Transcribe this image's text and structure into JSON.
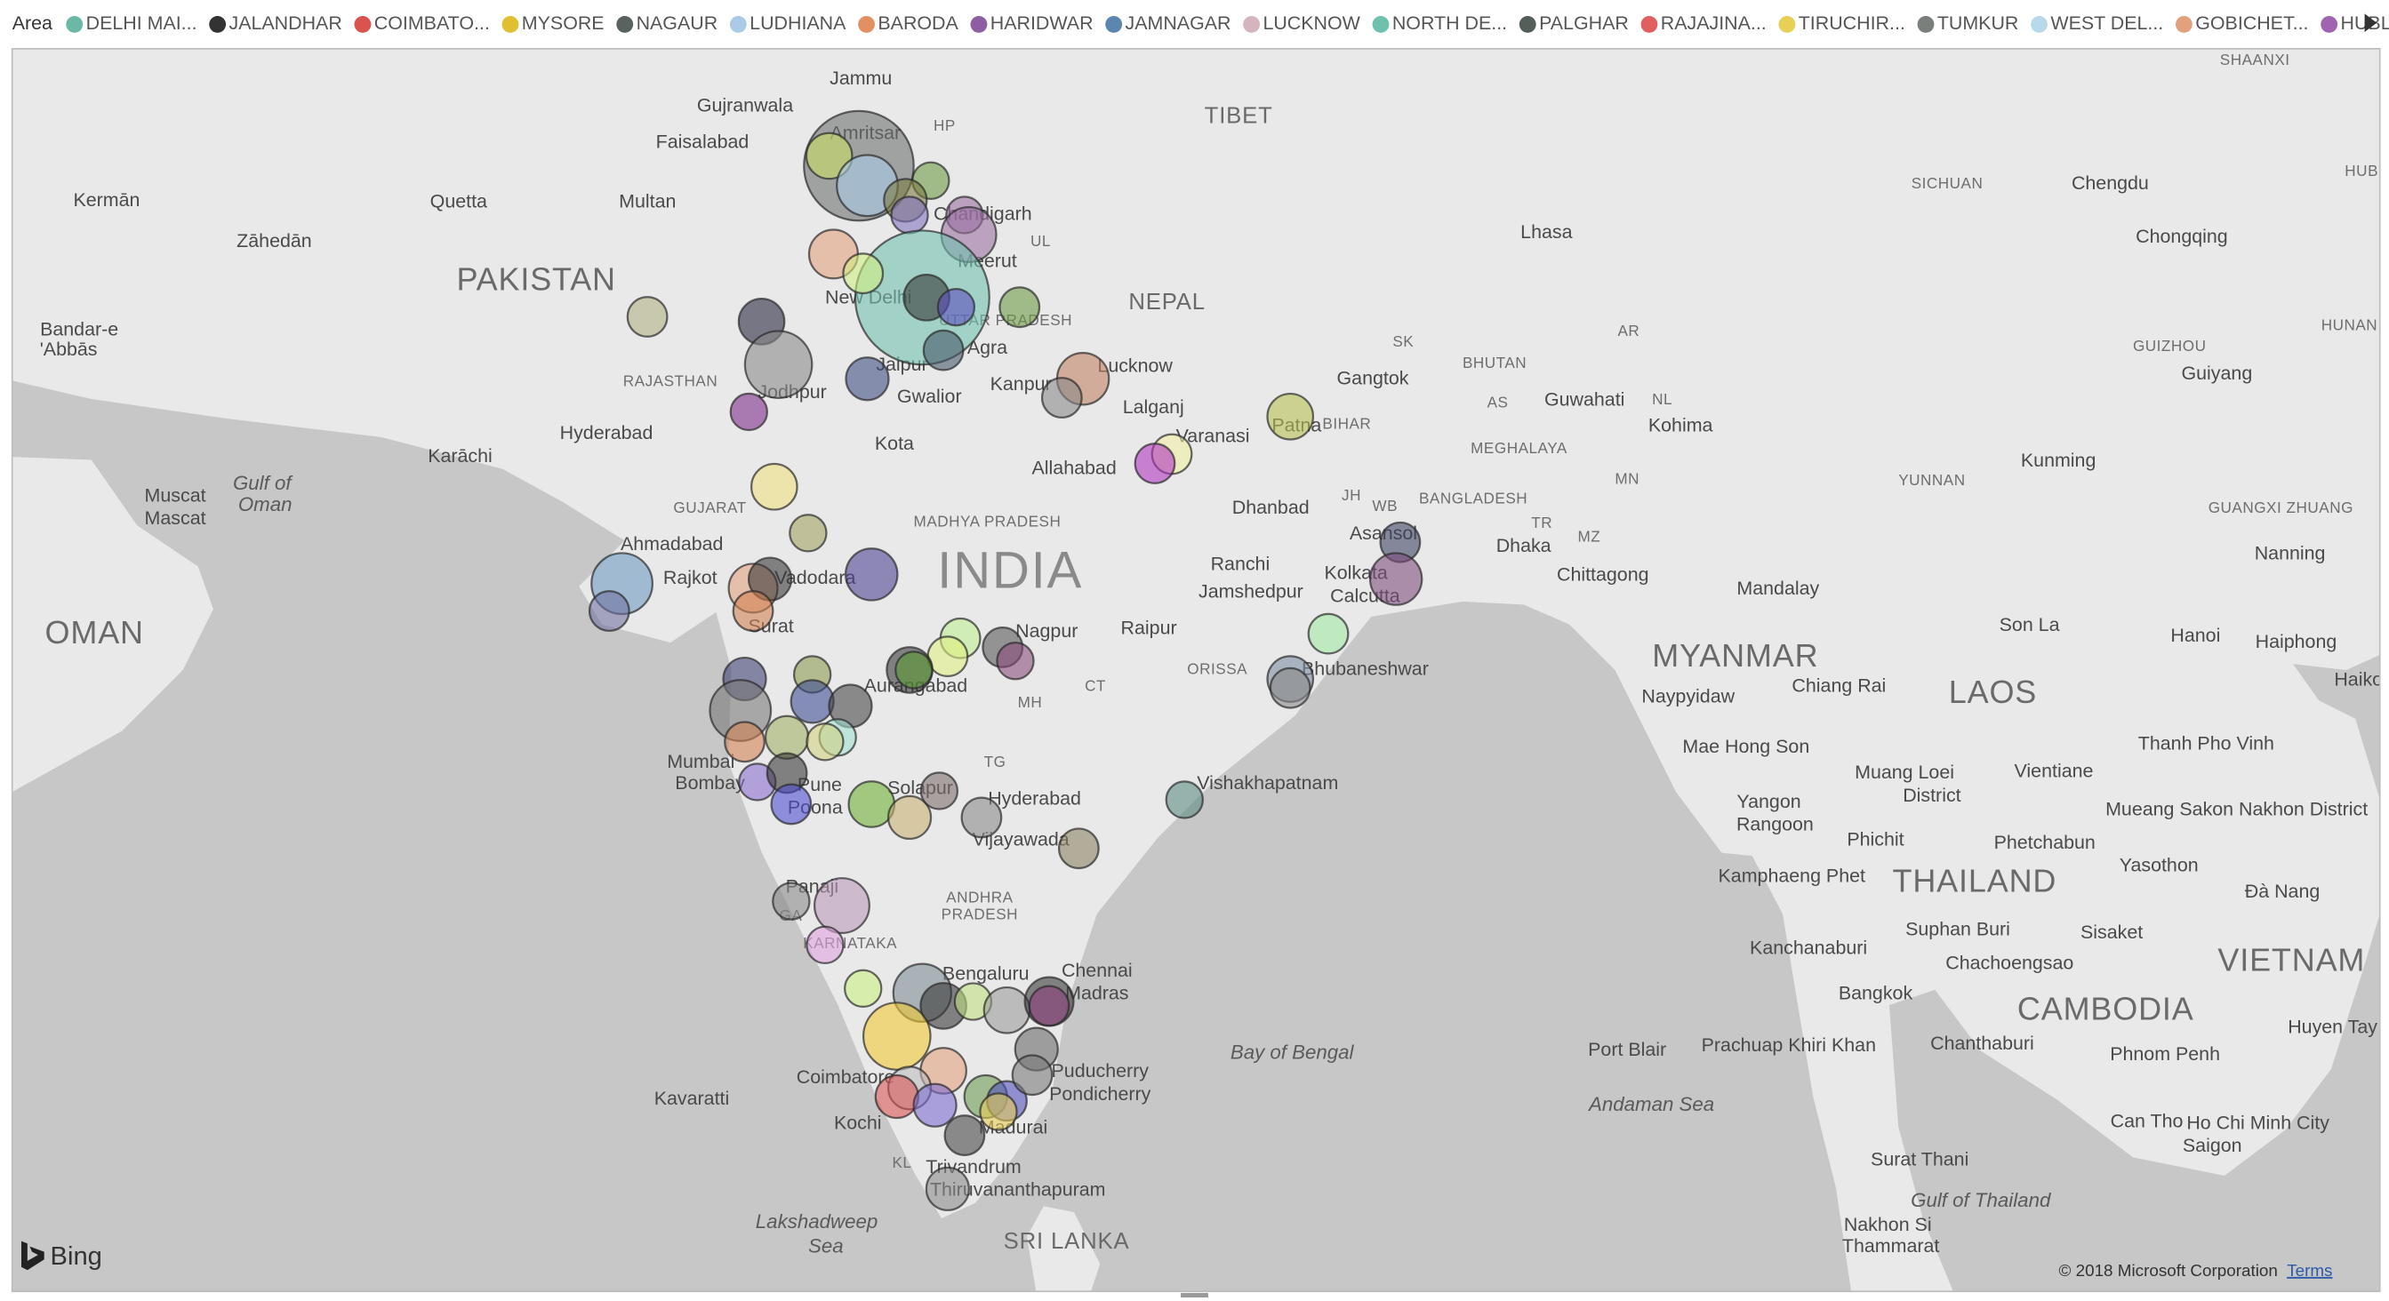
{
  "legend": {
    "title": "Area",
    "items": [
      {
        "name": "DELHI MAI...",
        "color": "#6ab8a5"
      },
      {
        "name": "JALANDHAR",
        "color": "#333333"
      },
      {
        "name": "COIMBATO...",
        "color": "#d9534f"
      },
      {
        "name": "MYSORE",
        "color": "#e0c030"
      },
      {
        "name": "NAGAUR",
        "color": "#5a6260"
      },
      {
        "name": "LUDHIANA",
        "color": "#a9cbe8"
      },
      {
        "name": "BARODA",
        "color": "#e19161"
      },
      {
        "name": "HARIDWAR",
        "color": "#8e5ea2"
      },
      {
        "name": "JAMNAGAR",
        "color": "#5b86b0"
      },
      {
        "name": "LUCKNOW",
        "color": "#d4b5bd"
      },
      {
        "name": "NORTH DE...",
        "color": "#6fc1ae"
      },
      {
        "name": "PALGHAR",
        "color": "#545f5a"
      },
      {
        "name": "RAJAJINA...",
        "color": "#e06060"
      },
      {
        "name": "TIRUCHIR...",
        "color": "#e8cf55"
      },
      {
        "name": "TUMKUR",
        "color": "#7a7f7c"
      },
      {
        "name": "WEST DEL...",
        "color": "#b8d8ec"
      },
      {
        "name": "GOBICHET...",
        "color": "#e3a07c"
      },
      {
        "name": "HUBLI",
        "color": "#a064b0"
      }
    ]
  },
  "map": {
    "labels": [
      "Jammu",
      "Gujranwala",
      "HP",
      "TIBET",
      "SHAANXI",
      "Faisalabad",
      "Amritsar",
      "HUB",
      "Kermān",
      "Quetta",
      "Multan",
      "SICHUAN",
      "Chengdu",
      "Chandigarh",
      "UL",
      "Lhasa",
      "Zāhedān",
      "Chongqing",
      "PAKISTAN",
      "Meerut",
      "NEPAL",
      "New Delhi",
      "HUNAN",
      "Bandar-e",
      "'Abbās",
      "UTTAR PRADESH",
      "Agra",
      "SK",
      "AR",
      "GUIZHOU",
      "Gangtok",
      "BHUTAN",
      "Lucknow",
      "Jaipur",
      "Guiyang",
      "RAJASTHAN",
      "Kanpur",
      "Jodhpur",
      "Gwalior",
      "AS",
      "Guwahati",
      "NL",
      "Lalganj",
      "Kohima",
      "Patna",
      "BIHAR",
      "Hyderabad",
      "Karāchi",
      "Kota",
      "Varanasi",
      "MEGHALAYA",
      "Kunming",
      "Allahabad",
      "Muscat",
      "Mascat",
      "Gulf of",
      "Oman",
      "GUJARAT",
      "Dhanbad",
      "JH",
      "WB",
      "BANGLADESH",
      "YUNNAN",
      "MN",
      "GUANGXI ZHUANG",
      "MADHYA PRADESH",
      "Ranchi",
      "Asansol",
      "Dhaka",
      "TR",
      "MZ",
      "Nanning",
      "INDIA",
      "Ahmadabad",
      "Rajkot",
      "Vadodara",
      "Jamshedpur",
      "Kolkata",
      "Calcutta",
      "Chittagong",
      "Mandalay",
      "OMAN",
      "Surat",
      "Nagpur",
      "Raipur",
      "ORISSA",
      "Bhubaneshwar",
      "Son La",
      "Hanoi",
      "Haiphong",
      "MYANMAR",
      "LAOS",
      "Naypyidaw",
      "Chiang Rai",
      "Haiko",
      "Aurangabad",
      "MH",
      "CT",
      "Mae Hong Son",
      "Thanh Pho Vinh",
      "TG",
      "Mumbai",
      "Bombay",
      "Pune",
      "Muang Loei",
      "District",
      "Vientiane",
      "Vishakhapatnam",
      "Solapur",
      "Hyderabad",
      "Poona",
      "Yangon",
      "Rangoon",
      "Mueang Sakon Nakhon District",
      "Vijayawada",
      "Phichit",
      "Phetchabun",
      "Kamphaeng Phet",
      "THAILAND",
      "Yasothon",
      "ANDHRA",
      "PRADESH",
      "Panaji",
      "Đà Nang",
      "GA",
      "Suphan Buri",
      "Sisaket",
      "KARNATAKA",
      "Kanchanaburi",
      "Chachoengsao",
      "VIETNAM",
      "Bangkok",
      "Bengaluru",
      "Chennai",
      "Madras",
      "CAMBODIA",
      "Huyen Tay",
      "Chanthaburi",
      "Port Blair",
      "Prachuap Khiri Khan",
      "Phnom Penh",
      "Bay of Bengal",
      "Coimbatore",
      "Puducherry",
      "Pondicherry",
      "Kavaratti",
      "Andaman Sea",
      "Kochi",
      "Madurai",
      "Can Tho",
      "Ho Chi Minh City",
      "Saigon",
      "KL",
      "Trivandrum",
      "Thiruvananthapuram",
      "Surat Thani",
      "Gulf of Thailand",
      "Lakshadweep",
      "Sea",
      "SRI LANKA",
      "Nakhon Si",
      "Thammarat"
    ],
    "bubbles": [
      {
        "lon": 75.5,
        "lat": 31.3,
        "size": 36,
        "color": "#6b6f6e"
      },
      {
        "lon": 74.8,
        "lat": 31.5,
        "size": 15,
        "color": "#c8e060"
      },
      {
        "lon": 75.7,
        "lat": 30.9,
        "size": 20,
        "color": "#a9cbe8"
      },
      {
        "lon": 77.2,
        "lat": 31.0,
        "size": 12,
        "color": "#6a9a40"
      },
      {
        "lon": 76.6,
        "lat": 30.6,
        "size": 14,
        "color": "#7a7a40"
      },
      {
        "lon": 76.7,
        "lat": 30.3,
        "size": 12,
        "color": "#8070c0"
      },
      {
        "lon": 78.0,
        "lat": 30.3,
        "size": 12,
        "color": "#9a6aa0"
      },
      {
        "lon": 78.1,
        "lat": 29.9,
        "size": 18,
        "color": "#9a70a0"
      },
      {
        "lon": 77.0,
        "lat": 28.6,
        "size": 44,
        "color": "#6fc1ae"
      },
      {
        "lon": 74.9,
        "lat": 29.5,
        "size": 16,
        "color": "#e3a07c"
      },
      {
        "lon": 75.6,
        "lat": 29.1,
        "size": 13,
        "color": "#d0f080"
      },
      {
        "lon": 77.1,
        "lat": 28.6,
        "size": 15,
        "color": "#333333"
      },
      {
        "lon": 77.8,
        "lat": 28.4,
        "size": 12,
        "color": "#5a4ac0"
      },
      {
        "lon": 79.3,
        "lat": 28.4,
        "size": 13,
        "color": "#6a9a40"
      },
      {
        "lon": 77.5,
        "lat": 27.5,
        "size": 13,
        "color": "#445566"
      },
      {
        "lon": 75.7,
        "lat": 26.9,
        "size": 14,
        "color": "#3a4a80"
      },
      {
        "lon": 73.2,
        "lat": 28.1,
        "size": 15,
        "color": "#22223a"
      },
      {
        "lon": 73.6,
        "lat": 27.2,
        "size": 22,
        "color": "#888888"
      },
      {
        "lon": 72.9,
        "lat": 26.2,
        "size": 12,
        "color": "#7a2a8a"
      },
      {
        "lon": 70.5,
        "lat": 28.2,
        "size": 13,
        "color": "#b0b080"
      },
      {
        "lon": 80.8,
        "lat": 26.9,
        "size": 17,
        "color": "#c08060"
      },
      {
        "lon": 80.3,
        "lat": 26.5,
        "size": 13,
        "color": "#888888"
      },
      {
        "lon": 85.7,
        "lat": 26.1,
        "size": 15,
        "color": "#b8c050"
      },
      {
        "lon": 82.9,
        "lat": 25.3,
        "size": 13,
        "color": "#f0f0a0"
      },
      {
        "lon": 82.5,
        "lat": 25.1,
        "size": 13,
        "color": "#b030c0"
      },
      {
        "lon": 73.5,
        "lat": 24.6,
        "size": 15,
        "color": "#f0e080"
      },
      {
        "lon": 74.3,
        "lat": 23.6,
        "size": 12,
        "color": "#a0a060"
      },
      {
        "lon": 75.8,
        "lat": 22.7,
        "size": 17,
        "color": "#4a4090"
      },
      {
        "lon": 69.9,
        "lat": 22.5,
        "size": 20,
        "color": "#6a9ac0"
      },
      {
        "lon": 69.6,
        "lat": 21.9,
        "size": 13,
        "color": "#7070a0"
      },
      {
        "lon": 73.0,
        "lat": 22.4,
        "size": 16,
        "color": "#e3a07c"
      },
      {
        "lon": 73.4,
        "lat": 22.6,
        "size": 14,
        "color": "#333333"
      },
      {
        "lon": 73.0,
        "lat": 21.9,
        "size": 13,
        "color": "#d08050"
      },
      {
        "lon": 88.3,
        "lat": 23.4,
        "size": 13,
        "color": "#3a4060"
      },
      {
        "lon": 88.2,
        "lat": 22.6,
        "size": 17,
        "color": "#7a4a7a"
      },
      {
        "lon": 86.6,
        "lat": 21.4,
        "size": 13,
        "color": "#a0e8a0"
      },
      {
        "lon": 85.7,
        "lat": 20.4,
        "size": 15,
        "color": "#7a8aa0"
      },
      {
        "lon": 85.7,
        "lat": 20.2,
        "size": 13,
        "color": "#888888"
      },
      {
        "lon": 77.9,
        "lat": 21.3,
        "size": 13,
        "color": "#c0f090"
      },
      {
        "lon": 77.6,
        "lat": 20.9,
        "size": 13,
        "color": "#e0f080"
      },
      {
        "lon": 76.7,
        "lat": 20.6,
        "size": 15,
        "color": "#333333"
      },
      {
        "lon": 76.8,
        "lat": 20.6,
        "size": 12,
        "color": "#5a9a30"
      },
      {
        "lon": 78.9,
        "lat": 21.1,
        "size": 13,
        "color": "#555555"
      },
      {
        "lon": 79.2,
        "lat": 20.8,
        "size": 12,
        "color": "#8a4a7a"
      },
      {
        "lon": 74.4,
        "lat": 20.5,
        "size": 12,
        "color": "#8a9a50"
      },
      {
        "lon": 72.8,
        "lat": 20.4,
        "size": 14,
        "color": "#3a3a70"
      },
      {
        "lon": 72.7,
        "lat": 19.7,
        "size": 20,
        "color": "#777777"
      },
      {
        "lon": 74.4,
        "lat": 19.9,
        "size": 14,
        "color": "#3a4a90"
      },
      {
        "lon": 75.3,
        "lat": 19.8,
        "size": 14,
        "color": "#444444"
      },
      {
        "lon": 72.8,
        "lat": 19.0,
        "size": 13,
        "color": "#d08050"
      },
      {
        "lon": 73.8,
        "lat": 19.1,
        "size": 14,
        "color": "#a0b060"
      },
      {
        "lon": 75.0,
        "lat": 19.1,
        "size": 12,
        "color": "#a0e0d0"
      },
      {
        "lon": 74.7,
        "lat": 19.0,
        "size": 12,
        "color": "#d0d080"
      },
      {
        "lon": 73.1,
        "lat": 18.1,
        "size": 12,
        "color": "#8a6ad0"
      },
      {
        "lon": 73.8,
        "lat": 18.3,
        "size": 13,
        "color": "#333333"
      },
      {
        "lon": 73.9,
        "lat": 17.6,
        "size": 13,
        "color": "#4a4ad0"
      },
      {
        "lon": 75.8,
        "lat": 17.6,
        "size": 15,
        "color": "#6ab030"
      },
      {
        "lon": 76.7,
        "lat": 17.3,
        "size": 14,
        "color": "#c8b070"
      },
      {
        "lon": 77.4,
        "lat": 17.9,
        "size": 12,
        "color": "#7a6a6a"
      },
      {
        "lon": 78.4,
        "lat": 17.3,
        "size": 13,
        "color": "#888888"
      },
      {
        "lon": 80.7,
        "lat": 16.6,
        "size": 13,
        "color": "#8a8060"
      },
      {
        "lon": 83.2,
        "lat": 17.7,
        "size": 12,
        "color": "#5a8a80"
      },
      {
        "lon": 73.9,
        "lat": 15.4,
        "size": 12,
        "color": "#888888"
      },
      {
        "lon": 75.1,
        "lat": 15.3,
        "size": 18,
        "color": "#b898b8"
      },
      {
        "lon": 74.7,
        "lat": 14.4,
        "size": 12,
        "color": "#e0a0e0"
      },
      {
        "lon": 75.6,
        "lat": 13.4,
        "size": 12,
        "color": "#c8f080"
      },
      {
        "lon": 77.0,
        "lat": 13.3,
        "size": 19,
        "color": "#7a8a90"
      },
      {
        "lon": 77.5,
        "lat": 13.0,
        "size": 15,
        "color": "#333333"
      },
      {
        "lon": 78.2,
        "lat": 13.1,
        "size": 12,
        "color": "#c0e080"
      },
      {
        "lon": 76.4,
        "lat": 12.3,
        "size": 22,
        "color": "#f0c830"
      },
      {
        "lon": 79.0,
        "lat": 12.9,
        "size": 15,
        "color": "#999999"
      },
      {
        "lon": 80.0,
        "lat": 13.1,
        "size": 16,
        "color": "#333333"
      },
      {
        "lon": 80.0,
        "lat": 13.0,
        "size": 13,
        "color": "#8a3a7a"
      },
      {
        "lon": 79.7,
        "lat": 12.0,
        "size": 14,
        "color": "#666666"
      },
      {
        "lon": 77.5,
        "lat": 11.5,
        "size": 15,
        "color": "#e3a07c"
      },
      {
        "lon": 76.7,
        "lat": 11.1,
        "size": 14,
        "color": "#bbbbbb"
      },
      {
        "lon": 76.4,
        "lat": 10.9,
        "size": 14,
        "color": "#d9534f"
      },
      {
        "lon": 77.3,
        "lat": 10.7,
        "size": 14,
        "color": "#7a6ad0"
      },
      {
        "lon": 78.5,
        "lat": 10.9,
        "size": 14,
        "color": "#6a9a50"
      },
      {
        "lon": 79.0,
        "lat": 10.8,
        "size": 13,
        "color": "#5050c0"
      },
      {
        "lon": 79.6,
        "lat": 11.4,
        "size": 13,
        "color": "#777777"
      },
      {
        "lon": 78.0,
        "lat": 10.0,
        "size": 13,
        "color": "#444444"
      },
      {
        "lon": 77.6,
        "lat": 8.75,
        "size": 14,
        "color": "#888888"
      },
      {
        "lon": 78.8,
        "lat": 10.55,
        "size": 12,
        "color": "#e8cf55"
      }
    ]
  },
  "footer": {
    "logo": "Bing",
    "copyright": "© 2018 Microsoft Corporation",
    "terms": "Terms"
  }
}
